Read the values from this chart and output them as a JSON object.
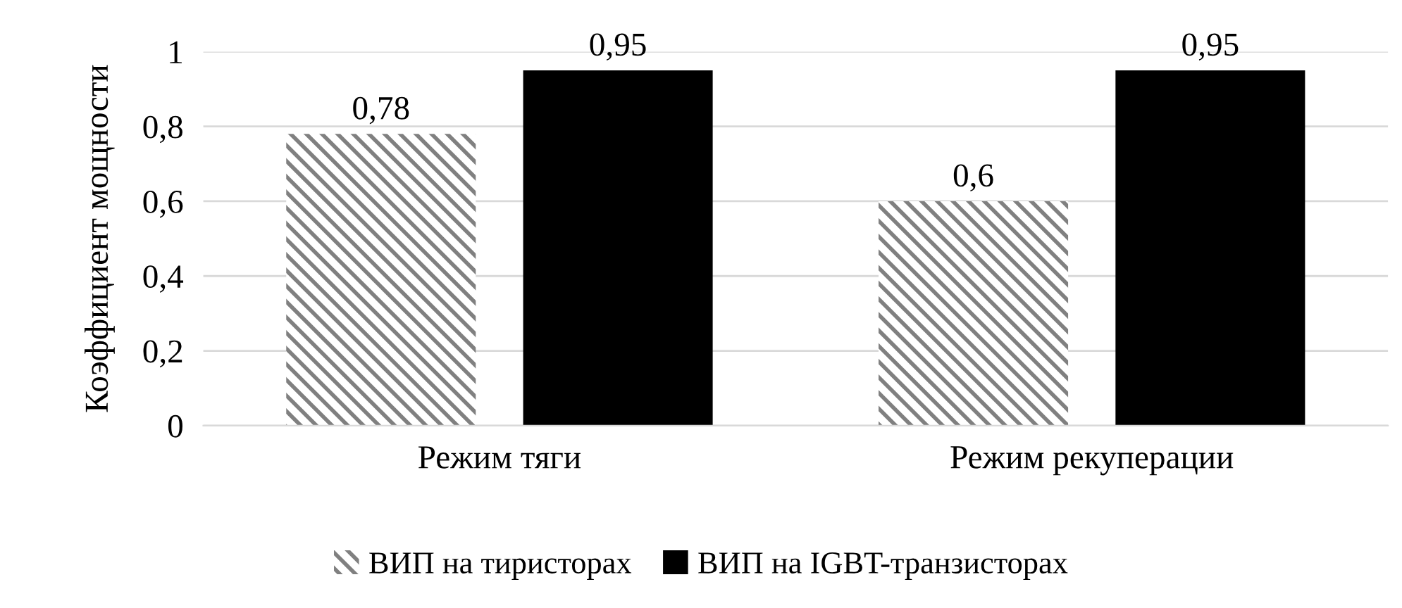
{
  "chart_data": {
    "type": "bar",
    "ylabel": "Коэффициент мощности",
    "categories": [
      "Режим тяги",
      "Режим рекуперации"
    ],
    "series": [
      {
        "name": "ВИП на тиристорах",
        "color": "#808080",
        "values": [
          0.78,
          0.6
        ],
        "value_labels": [
          "0,78",
          "0,6"
        ]
      },
      {
        "name": "ВИП на IGBT-транзисторах",
        "color": "#000000",
        "values": [
          0.95,
          0.95
        ],
        "value_labels": [
          "0,95",
          "0,95"
        ]
      }
    ],
    "ylim": [
      0,
      1
    ],
    "yticks": [
      {
        "value": 0,
        "label": "0"
      },
      {
        "value": 0.2,
        "label": "0,2"
      },
      {
        "value": 0.4,
        "label": "0,4"
      },
      {
        "value": 0.6,
        "label": "0,6"
      },
      {
        "value": 0.8,
        "label": "0,8"
      },
      {
        "value": 1,
        "label": "1"
      }
    ],
    "grid": "y",
    "legend": "bottom"
  }
}
